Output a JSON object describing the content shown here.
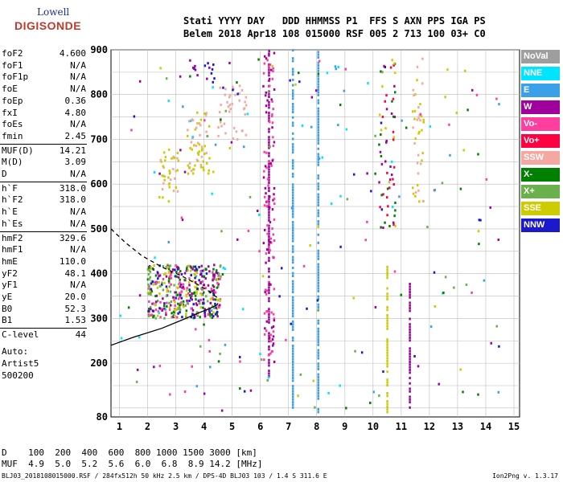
{
  "logo": {
    "top": "Lowell",
    "bottom": "DIGISONDE"
  },
  "header": {
    "line1": "Stati YYYY DAY   DDD HHMMSS P1  FFS S AXN PPS IGA PS",
    "line2": "Belem 2018 Apr18 108 015000 RSF 005 2 713 100 03+ C0"
  },
  "params": [
    {
      "label": "foF2",
      "value": "4.600"
    },
    {
      "label": "foF1",
      "value": "N/A"
    },
    {
      "label": "foF1p",
      "value": "N/A"
    },
    {
      "label": "foE",
      "value": "N/A"
    },
    {
      "label": "foEp",
      "value": "0.36"
    },
    {
      "label": "fxI",
      "value": "4.80"
    },
    {
      "label": "foEs",
      "value": "N/A"
    },
    {
      "label": "fmin",
      "value": "2.45"
    },
    {
      "label": "MUF(D)",
      "value": "14.21"
    },
    {
      "label": "M(D)",
      "value": "3.09"
    },
    {
      "label": "D",
      "value": "N/A"
    },
    {
      "label": "h`F",
      "value": "318.0"
    },
    {
      "label": "h`F2",
      "value": "318.0"
    },
    {
      "label": "h`E",
      "value": "N/A"
    },
    {
      "label": "h`Es",
      "value": "N/A"
    },
    {
      "label": "hmF2",
      "value": "329.6"
    },
    {
      "label": "hmF1",
      "value": "N/A"
    },
    {
      "label": "hmE",
      "value": "110.0"
    },
    {
      "label": "yF2",
      "value": "48.1"
    },
    {
      "label": "yF1",
      "value": "N/A"
    },
    {
      "label": "yE",
      "value": "20.0"
    },
    {
      "label": "B0",
      "value": "52.3"
    },
    {
      "label": "B1",
      "value": "1.53"
    },
    {
      "label": "C-level",
      "value": "44"
    }
  ],
  "auto": {
    "line1": "Auto:",
    "line2": "Artist5",
    "line3": "500200"
  },
  "legend": [
    {
      "label": "NoVal",
      "color": "#9e9e9e"
    },
    {
      "label": "NNE",
      "color": "#00e5ff"
    },
    {
      "label": "E",
      "color": "#3aa0e8"
    },
    {
      "label": "W",
      "color": "#a0009c"
    },
    {
      "label": "Vo-",
      "color": "#ff3fa0"
    },
    {
      "label": "Vo+",
      "color": "#ff0040"
    },
    {
      "label": "SSW",
      "color": "#f4a8a0"
    },
    {
      "label": "X-",
      "color": "#008000"
    },
    {
      "label": "X+",
      "color": "#6ab04c"
    },
    {
      "label": "SSE",
      "color": "#cccc00"
    },
    {
      "label": "NNW",
      "color": "#1a1acc"
    }
  ],
  "bottom": {
    "line1": "D    100  200  400  600  800 1000 1500 3000 [km]",
    "line2": "MUF  4.9  5.0  5.2  5.6  6.0  6.8  8.9 14.2 [MHz]"
  },
  "footer": "BLJ03_2018108015000.RSF / 284fx512h 50 kHz 2.5 km / DPS-4D BLJ03 103 / 1.4 S 311.6 E",
  "version": "Ion2Png v. 1.3.17",
  "chart_data": {
    "type": "scatter",
    "xlim": [
      0.7,
      15.2
    ],
    "ylim": [
      80,
      900
    ],
    "xticks": [
      1,
      2,
      3,
      4,
      5,
      6,
      7,
      8,
      9,
      10,
      11,
      12,
      13,
      14,
      15
    ],
    "yticks": [
      80,
      200,
      300,
      400,
      500,
      600,
      700,
      800,
      900
    ],
    "grid": true,
    "profile_solid": [
      [
        0.7,
        240
      ],
      [
        1.5,
        258
      ],
      [
        2.5,
        278
      ],
      [
        3.2,
        296
      ],
      [
        3.8,
        312
      ],
      [
        4.2,
        322
      ],
      [
        4.45,
        330
      ],
      [
        4.5,
        334
      ]
    ],
    "profile_dashed": [
      [
        0.7,
        500
      ],
      [
        1.2,
        470
      ],
      [
        1.8,
        440
      ],
      [
        2.5,
        415
      ],
      [
        3.2,
        395
      ],
      [
        3.8,
        375
      ],
      [
        4.2,
        360
      ],
      [
        4.5,
        345
      ]
    ],
    "vlines": [
      {
        "x": 6.3,
        "y0": 170,
        "y1": 900,
        "color": "#a0009c"
      },
      {
        "x": 7.15,
        "y0": 100,
        "y1": 900,
        "color": "#3aa0e8"
      },
      {
        "x": 8.05,
        "y0": 90,
        "y1": 900,
        "color": "#3aa0e8"
      },
      {
        "x": 10.5,
        "y0": 90,
        "y1": 420,
        "color": "#cccc00"
      },
      {
        "x": 11.3,
        "y0": 100,
        "y1": 380,
        "color": "#a0009c"
      }
    ],
    "clusters": [
      {
        "x": [
          2.0,
          4.6
        ],
        "y": [
          300,
          420
        ],
        "n": 420,
        "colors": [
          "#ff3fa0",
          "#008000",
          "#cccc00",
          "#1a1acc",
          "#a0009c",
          "#6ab04c"
        ]
      },
      {
        "x": [
          2.4,
          3.1
        ],
        "y": [
          560,
          680
        ],
        "n": 40,
        "colors": [
          "#f4a8a0",
          "#cccc00"
        ]
      },
      {
        "x": [
          3.4,
          4.2
        ],
        "y": [
          620,
          760
        ],
        "n": 60,
        "colors": [
          "#f4a8a0",
          "#cccc00"
        ]
      },
      {
        "x": [
          4.5,
          5.5
        ],
        "y": [
          700,
          820
        ],
        "n": 40,
        "colors": [
          "#f4a8a0"
        ]
      },
      {
        "x": [
          3.6,
          4.4
        ],
        "y": [
          820,
          870
        ],
        "n": 14,
        "colors": [
          "#1a1acc",
          "#a0009c"
        ]
      },
      {
        "x": [
          6.1,
          6.5
        ],
        "y": [
          200,
          900
        ],
        "n": 120,
        "colors": [
          "#a0009c",
          "#ff3fa0"
        ]
      },
      {
        "x": [
          10.2,
          10.8
        ],
        "y": [
          500,
          880
        ],
        "n": 60,
        "colors": [
          "#cccc00",
          "#a0009c",
          "#ff0040",
          "#008000"
        ]
      },
      {
        "x": [
          11.4,
          11.8
        ],
        "y": [
          560,
          880
        ],
        "n": 40,
        "colors": [
          "#f4a8a0",
          "#cccc00"
        ]
      },
      {
        "x": [
          1.0,
          14.5
        ],
        "y": [
          90,
          880
        ],
        "n": 220,
        "colors": [
          "#1a1acc",
          "#00e5ff",
          "#cccc00",
          "#6ab04c",
          "#a0009c",
          "#ff3fa0",
          "#008000",
          "#3aa0e8"
        ]
      }
    ]
  }
}
